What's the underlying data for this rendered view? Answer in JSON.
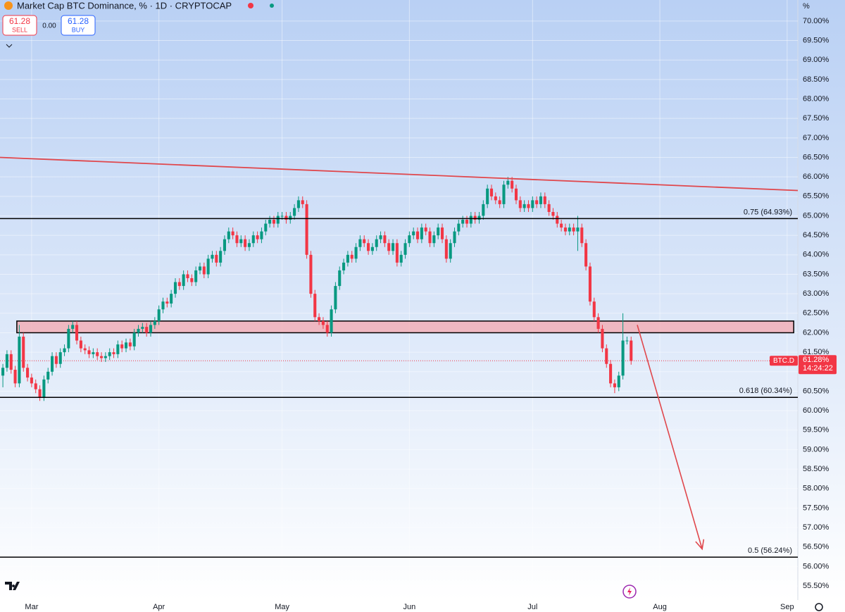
{
  "header": {
    "title": "Market Cap BTC Dominance, % · 1D · CRYPTOCAP",
    "sell": "61.28",
    "sell_label": "SELL",
    "spread": "0.00",
    "buy": "61.28",
    "buy_label": "BUY"
  },
  "chart_data": {
    "type": "candlestick",
    "axis_unit": "%",
    "up_color": "#089981",
    "down_color": "#f23645",
    "xlim": [
      -0.7,
      193.6
    ],
    "ylim": [
      55.14,
      70.54
    ],
    "xticks": [
      {
        "value": 7,
        "label": "Mar"
      },
      {
        "value": 38,
        "label": "Apr"
      },
      {
        "value": 68,
        "label": "May"
      },
      {
        "value": 99,
        "label": "Jun"
      },
      {
        "value": 129,
        "label": "Jul"
      },
      {
        "value": 160,
        "label": "Aug"
      },
      {
        "value": 191,
        "label": "Sep"
      }
    ],
    "yticks": [
      {
        "value": 55.5,
        "label": "55.50%"
      },
      {
        "value": 56,
        "label": "56.00%"
      },
      {
        "value": 56.5,
        "label": "56.50%"
      },
      {
        "value": 57,
        "label": "57.00%"
      },
      {
        "value": 57.5,
        "label": "57.50%"
      },
      {
        "value": 58,
        "label": "58.00%"
      },
      {
        "value": 58.5,
        "label": "58.50%"
      },
      {
        "value": 59,
        "label": "59.00%"
      },
      {
        "value": 59.5,
        "label": "59.50%"
      },
      {
        "value": 60,
        "label": "60.00%"
      },
      {
        "value": 60.5,
        "label": "60.50%"
      },
      {
        "value": 61,
        "label": "61.00%"
      },
      {
        "value": 61.5,
        "label": "61.50%"
      },
      {
        "value": 62,
        "label": "62.00%"
      },
      {
        "value": 62.5,
        "label": "62.50%"
      },
      {
        "value": 63,
        "label": "63.00%"
      },
      {
        "value": 63.5,
        "label": "63.50%"
      },
      {
        "value": 64,
        "label": "64.00%"
      },
      {
        "value": 64.5,
        "label": "64.50%"
      },
      {
        "value": 65,
        "label": "65.00%"
      },
      {
        "value": 65.5,
        "label": "65.50%"
      },
      {
        "value": 66,
        "label": "66.00%"
      },
      {
        "value": 66.5,
        "label": "66.50%"
      },
      {
        "value": 67,
        "label": "67.00%"
      },
      {
        "value": 67.5,
        "label": "67.50%"
      },
      {
        "value": 68,
        "label": "68.00%"
      },
      {
        "value": 68.5,
        "label": "68.50%"
      },
      {
        "value": 69,
        "label": "69.00%"
      },
      {
        "value": 69.5,
        "label": "69.50%"
      },
      {
        "value": 70,
        "label": "70.00%"
      }
    ],
    "open": [
      60.9,
      61.1,
      61.45,
      61.05,
      60.7,
      61.9,
      61.1,
      60.85,
      60.7,
      60.55,
      60.35,
      60.8,
      61.0,
      61.4,
      61.2,
      61.5,
      61.6,
      62.1,
      62.2,
      61.8,
      61.6,
      61.55,
      61.45,
      61.5,
      61.4,
      61.35,
      61.4,
      61.5,
      61.45,
      61.7,
      61.6,
      61.75,
      61.65,
      62.0,
      62.1,
      62.15,
      62.0,
      62.2,
      62.3,
      62.6,
      62.8,
      62.75,
      63.0,
      63.3,
      63.2,
      63.5,
      63.4,
      63.3,
      63.6,
      63.7,
      63.5,
      63.9,
      64.0,
      63.8,
      64.1,
      64.4,
      64.6,
      64.5,
      64.3,
      64.4,
      64.2,
      64.3,
      64.5,
      64.4,
      64.6,
      64.8,
      64.9,
      64.8,
      65.0,
      65.0,
      64.9,
      65.0,
      65.2,
      65.4,
      65.3,
      64.0,
      63.0,
      62.4,
      62.3,
      62.2,
      62.0,
      62.6,
      63.2,
      63.6,
      63.8,
      64.0,
      63.9,
      64.2,
      64.4,
      64.3,
      64.1,
      64.2,
      64.4,
      64.5,
      64.3,
      64.1,
      64.3,
      63.8,
      64.0,
      64.3,
      64.5,
      64.6,
      64.4,
      64.7,
      64.6,
      64.3,
      64.5,
      64.7,
      64.4,
      63.9,
      64.3,
      64.6,
      64.8,
      64.9,
      64.8,
      65.0,
      64.9,
      65.0,
      65.3,
      65.7,
      65.5,
      65.4,
      65.3,
      65.8,
      65.9,
      65.7,
      65.4,
      65.2,
      65.3,
      65.2,
      65.4,
      65.3,
      65.5,
      65.3,
      65.1,
      65.0,
      64.8,
      64.7,
      64.6,
      64.7,
      64.6,
      64.7,
      64.3,
      63.7,
      62.8,
      62.4,
      62.1,
      61.6,
      61.2,
      60.7,
      60.6,
      60.9,
      61.8,
      61.8
    ],
    "high": [
      61.2,
      61.55,
      61.55,
      61.15,
      62.2,
      62.0,
      61.2,
      60.95,
      60.8,
      60.65,
      60.9,
      61.1,
      61.5,
      61.5,
      61.6,
      61.7,
      62.2,
      62.3,
      62.3,
      61.9,
      61.7,
      61.65,
      61.6,
      61.6,
      61.5,
      61.5,
      61.6,
      61.6,
      61.8,
      61.8,
      61.85,
      61.85,
      62.1,
      62.2,
      62.25,
      62.25,
      62.3,
      62.4,
      62.7,
      62.9,
      62.9,
      63.1,
      63.4,
      63.4,
      63.6,
      63.6,
      63.5,
      63.7,
      63.8,
      63.8,
      64.0,
      64.1,
      64.1,
      64.2,
      64.5,
      64.7,
      64.7,
      64.6,
      64.5,
      64.5,
      64.4,
      64.6,
      64.6,
      64.7,
      64.9,
      65.0,
      65.0,
      65.1,
      65.1,
      65.1,
      65.1,
      65.3,
      65.5,
      65.5,
      65.4,
      64.1,
      63.1,
      62.5,
      62.4,
      62.3,
      62.7,
      63.3,
      63.7,
      63.9,
      64.1,
      64.1,
      64.3,
      64.5,
      64.5,
      64.4,
      64.3,
      64.5,
      64.6,
      64.6,
      64.4,
      64.4,
      64.4,
      64.1,
      64.4,
      64.6,
      64.7,
      64.7,
      64.8,
      64.8,
      64.7,
      64.6,
      64.8,
      64.8,
      64.5,
      64.4,
      64.7,
      64.9,
      65.0,
      65.0,
      65.1,
      65.1,
      65.1,
      65.4,
      65.8,
      65.8,
      65.6,
      65.5,
      65.9,
      66.0,
      66.0,
      65.8,
      65.5,
      65.4,
      65.4,
      65.5,
      65.5,
      65.6,
      65.6,
      65.4,
      65.2,
      65.1,
      64.9,
      64.8,
      64.8,
      64.8,
      65.0,
      64.8,
      64.4,
      63.8,
      62.9,
      62.5,
      62.2,
      61.7,
      61.3,
      60.8,
      61.0,
      62.5,
      61.9,
      61.9
    ],
    "low": [
      60.6,
      61.0,
      60.95,
      60.6,
      60.6,
      61.0,
      60.75,
      60.6,
      60.45,
      60.25,
      60.25,
      60.7,
      60.9,
      61.1,
      61.1,
      61.4,
      61.5,
      62.0,
      61.7,
      61.5,
      61.45,
      61.35,
      61.35,
      61.3,
      61.25,
      61.25,
      61.3,
      61.35,
      61.35,
      61.5,
      61.5,
      61.55,
      61.55,
      61.9,
      62.0,
      61.9,
      61.9,
      62.1,
      62.2,
      62.5,
      62.65,
      62.65,
      62.9,
      63.1,
      63.1,
      63.3,
      63.2,
      63.2,
      63.5,
      63.4,
      63.4,
      63.8,
      63.7,
      63.7,
      64.0,
      64.3,
      64.4,
      64.2,
      64.2,
      64.1,
      64.1,
      64.2,
      64.3,
      64.3,
      64.5,
      64.7,
      64.7,
      64.7,
      64.9,
      64.8,
      64.8,
      64.9,
      65.1,
      65.2,
      63.9,
      62.9,
      62.3,
      62.2,
      62.1,
      61.9,
      61.9,
      62.5,
      63.1,
      63.5,
      63.7,
      63.8,
      63.8,
      64.1,
      64.2,
      64.0,
      64.0,
      64.1,
      64.3,
      64.2,
      64.0,
      64.0,
      63.7,
      63.7,
      63.9,
      64.2,
      64.4,
      64.3,
      64.3,
      64.5,
      64.2,
      64.2,
      64.4,
      64.3,
      63.8,
      63.8,
      64.2,
      64.5,
      64.7,
      64.7,
      64.7,
      64.8,
      64.8,
      64.9,
      65.2,
      65.4,
      65.3,
      65.2,
      65.2,
      65.7,
      65.6,
      65.3,
      65.1,
      65.1,
      65.1,
      65.1,
      65.2,
      65.2,
      65.2,
      65.0,
      64.9,
      64.7,
      64.6,
      64.5,
      64.5,
      64.5,
      64.1,
      64.2,
      63.6,
      62.7,
      62.3,
      62.0,
      61.5,
      61.1,
      60.6,
      60.45,
      60.5,
      60.8,
      61.7,
      61.18
    ],
    "close": [
      61.1,
      61.45,
      61.05,
      60.7,
      61.9,
      61.1,
      60.85,
      60.7,
      60.55,
      60.35,
      60.8,
      61.0,
      61.4,
      61.2,
      61.5,
      61.6,
      62.1,
      62.2,
      61.8,
      61.6,
      61.55,
      61.45,
      61.5,
      61.4,
      61.35,
      61.4,
      61.5,
      61.45,
      61.7,
      61.6,
      61.75,
      61.65,
      62.0,
      62.1,
      62.15,
      62.0,
      62.2,
      62.3,
      62.6,
      62.8,
      62.75,
      63.0,
      63.3,
      63.2,
      63.5,
      63.4,
      63.3,
      63.6,
      63.7,
      63.5,
      63.9,
      64.0,
      63.8,
      64.1,
      64.4,
      64.6,
      64.5,
      64.3,
      64.4,
      64.2,
      64.3,
      64.5,
      64.4,
      64.6,
      64.8,
      64.9,
      64.8,
      65.0,
      65.0,
      64.9,
      65.0,
      65.2,
      65.4,
      65.3,
      64.0,
      63.0,
      62.4,
      62.3,
      62.2,
      62.0,
      62.6,
      63.2,
      63.6,
      63.8,
      64.0,
      63.9,
      64.2,
      64.4,
      64.3,
      64.1,
      64.2,
      64.4,
      64.5,
      64.3,
      64.1,
      64.3,
      63.8,
      64.0,
      64.3,
      64.5,
      64.6,
      64.4,
      64.7,
      64.6,
      64.3,
      64.5,
      64.7,
      64.4,
      63.9,
      64.3,
      64.6,
      64.8,
      64.9,
      64.8,
      65.0,
      64.9,
      65.0,
      65.3,
      65.7,
      65.5,
      65.4,
      65.3,
      65.8,
      65.9,
      65.7,
      65.4,
      65.2,
      65.3,
      65.2,
      65.4,
      65.3,
      65.5,
      65.3,
      65.1,
      65.0,
      64.8,
      64.7,
      64.6,
      64.7,
      64.6,
      64.7,
      64.3,
      63.7,
      62.8,
      62.4,
      62.1,
      61.6,
      61.2,
      60.7,
      60.6,
      60.9,
      61.8,
      61.8,
      61.28
    ],
    "levels": [
      {
        "value": 64.93,
        "label": "0.75 (64.93%)"
      },
      {
        "value": 60.34,
        "label": "0.618 (60.34%)"
      },
      {
        "value": 56.24,
        "label": "0.5 (56.24%)"
      }
    ],
    "zone": {
      "x": [
        3.4,
        192.6
      ],
      "y": [
        62.0,
        62.3
      ]
    },
    "trendline": {
      "x": [
        -0.7,
        193.6
      ],
      "y": [
        66.5,
        65.65
      ]
    },
    "arrow": {
      "x": [
        154.5,
        170.3
      ],
      "y": [
        62.2,
        56.45
      ]
    },
    "price_line": {
      "value": 61.28,
      "symbol": "BTC.D",
      "value_label": "61.28%",
      "countdown": "14:24:22"
    }
  }
}
